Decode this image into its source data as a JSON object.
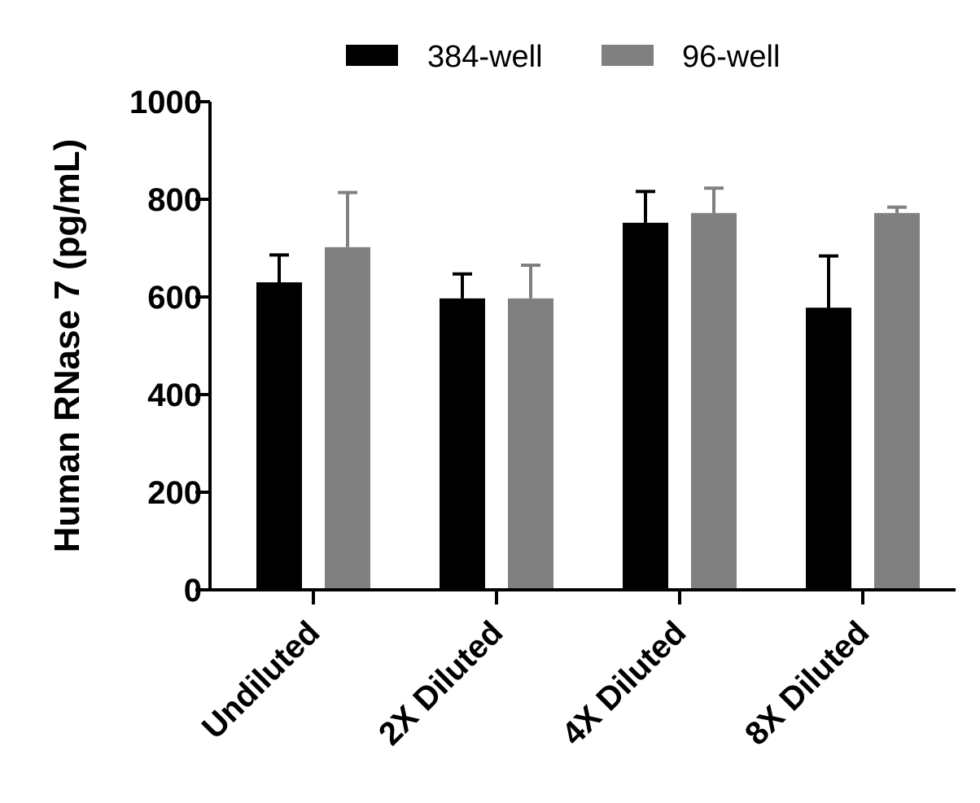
{
  "chart_data": {
    "type": "bar",
    "title": "",
    "xlabel": "",
    "ylabel": "Human  RNase 7 (pg/mL)",
    "ylim": [
      0,
      1000
    ],
    "yticks": [
      0,
      200,
      400,
      600,
      800,
      1000
    ],
    "grid": false,
    "legend_position": "top",
    "categories": [
      "Undiluted",
      "2X Diluted",
      "4X Diluted",
      "8X Diluted"
    ],
    "series": [
      {
        "name": "384-well",
        "color": "#000000",
        "values": [
          630,
          597,
          752,
          578
        ],
        "error": [
          56,
          50,
          64,
          106
        ]
      },
      {
        "name": "96-well",
        "color": "#808080",
        "values": [
          702,
          597,
          772,
          772
        ],
        "error": [
          112,
          68,
          51,
          12
        ]
      }
    ]
  }
}
